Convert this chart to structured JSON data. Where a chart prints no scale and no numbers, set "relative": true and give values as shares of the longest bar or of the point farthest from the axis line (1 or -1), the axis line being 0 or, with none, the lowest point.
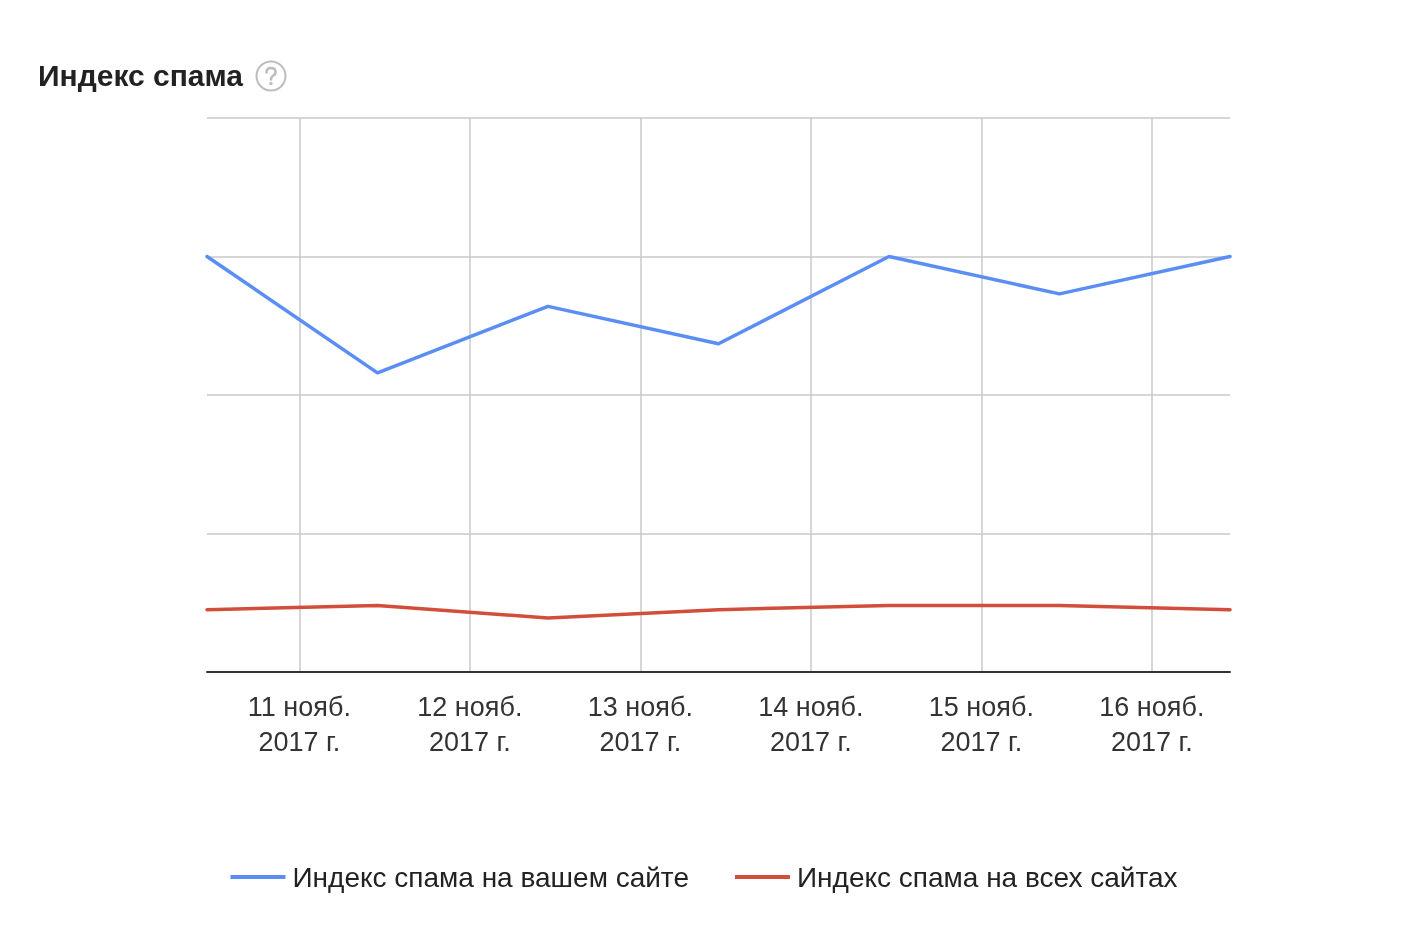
{
  "chart_data": {
    "type": "line",
    "title": "Индекс спама",
    "x": [
      "2017-11-10T11:00",
      "2017-11-11T11:00",
      "2017-11-12T11:00",
      "2017-11-13T11:00",
      "2017-11-14T11:00",
      "2017-11-15T11:00",
      "2017-11-16T11:00"
    ],
    "xlim": [
      "2017-11-10T11:00",
      "2017-11-16T11:00"
    ],
    "xticks": [
      {
        "value": "2017-11-11",
        "label": "11 нояб.\n2017 г."
      },
      {
        "value": "2017-11-12",
        "label": "12 нояб.\n2017 г."
      },
      {
        "value": "2017-11-13",
        "label": "13 нояб.\n2017 г."
      },
      {
        "value": "2017-11-14",
        "label": "14 нояб.\n2017 г."
      },
      {
        "value": "2017-11-15",
        "label": "15 нояб.\n2017 г."
      },
      {
        "value": "2017-11-16",
        "label": "16 нояб.\n2017 г."
      }
    ],
    "relative": true,
    "series": [
      {
        "name": "Индекс спама на вашем сайте",
        "color": "#5b8ef5",
        "values": [
          1,
          0.72,
          0.88,
          0.79,
          1,
          0.91,
          1
        ]
      },
      {
        "name": "Индекс спама на всех сайтах",
        "color": "#d34e3a",
        "values": [
          0.15,
          0.16,
          0.13,
          0.15,
          0.16,
          0.16,
          0.15
        ]
      }
    ],
    "grid": true,
    "legend": "bottom",
    "marker": "none",
    "line_style": "solid"
  }
}
